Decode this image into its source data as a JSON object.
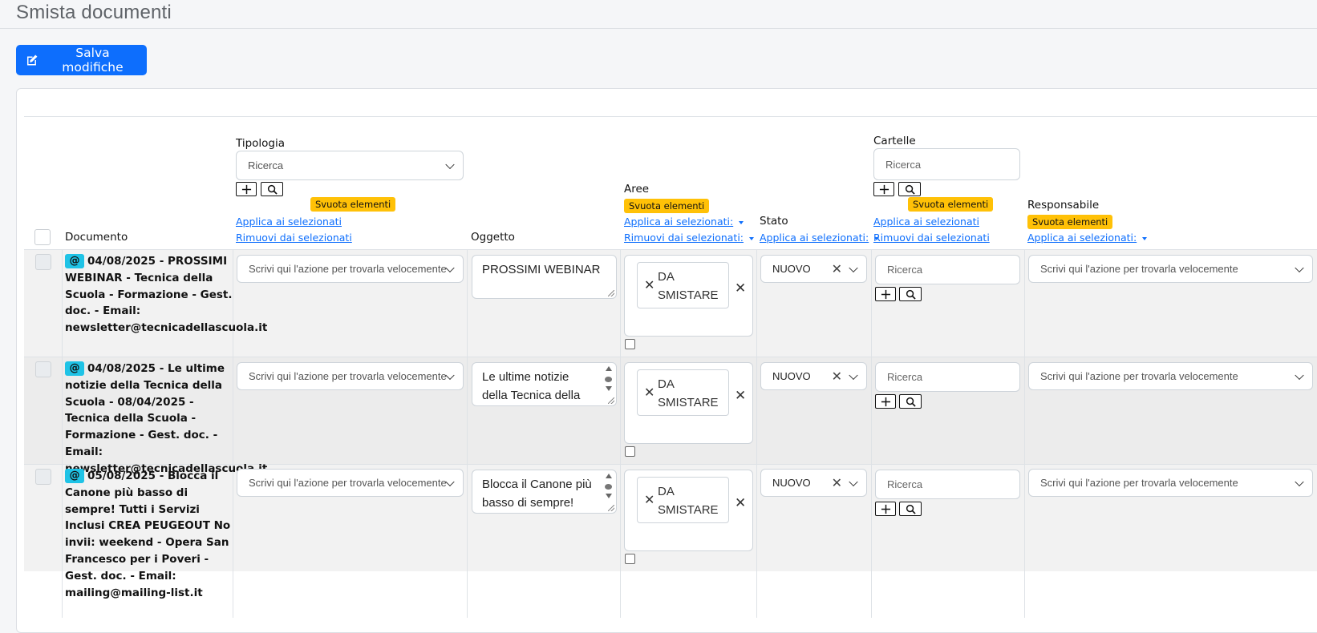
{
  "page": {
    "title": "Smista documenti"
  },
  "toolbar": {
    "save_label": "Salva modifiche"
  },
  "columns": {
    "documento": "Documento",
    "tipologia": "Tipologia",
    "oggetto": "Oggetto",
    "aree": "Aree",
    "stato": "Stato",
    "cartelle": "Cartelle",
    "responsabile": "Responsabile"
  },
  "header": {
    "search_placeholder": "Ricerca",
    "empty_label": "Svuota elementi",
    "apply_selected": "Applica ai selezionati",
    "remove_selected": "Rimuovi dai selezionati",
    "apply_selected_dd": "Applica ai selezionati:",
    "remove_selected_dd": "Rimuovi dai selezionati:"
  },
  "common": {
    "action_placeholder": "Scrivi qui l'azione per trovarla velocemente",
    "search_placeholder": "Ricerca",
    "at_icon": "@",
    "area_tag": "DA SMISTARE",
    "tag_line1": "DA",
    "tag_line2": "SMISTARE",
    "stato_value": "NUOVO"
  },
  "rows": [
    {
      "document": "04/08/2025 - PROSSIMI WEBINAR - Tecnica della Scuola - Formazione - Gest. doc. - Email: newsletter@tecnicadellascuola.it",
      "oggetto": "PROSSIMI WEBINAR"
    },
    {
      "document": "04/08/2025 - Le ultime notizie della Tecnica della Scuola - 08/04/2025 - Tecnica della Scuola - Formazione - Gest. doc. - Email: newsletter@tecnicadellascuola.it",
      "oggetto": "Le ultime notizie della Tecnica della"
    },
    {
      "document": "05/08/2025 - Blocca il Canone più basso di sempre! Tutti i Servizi Inclusi CREA PEUGEOUT No invii: weekend - Opera San Francesco per i Poveri - Gest. doc. - Email: mailing@mailing-list.it",
      "oggetto": "Blocca il Canone più basso di sempre!"
    }
  ],
  "colors": {
    "primary": "#0d6efd",
    "badge": "#ffc107",
    "at_badge": "#1fc3e6"
  },
  "icons": [
    "edit-icon",
    "plus-icon",
    "search-icon",
    "chevron-down-icon",
    "close-icon",
    "caret-down-icon"
  ]
}
